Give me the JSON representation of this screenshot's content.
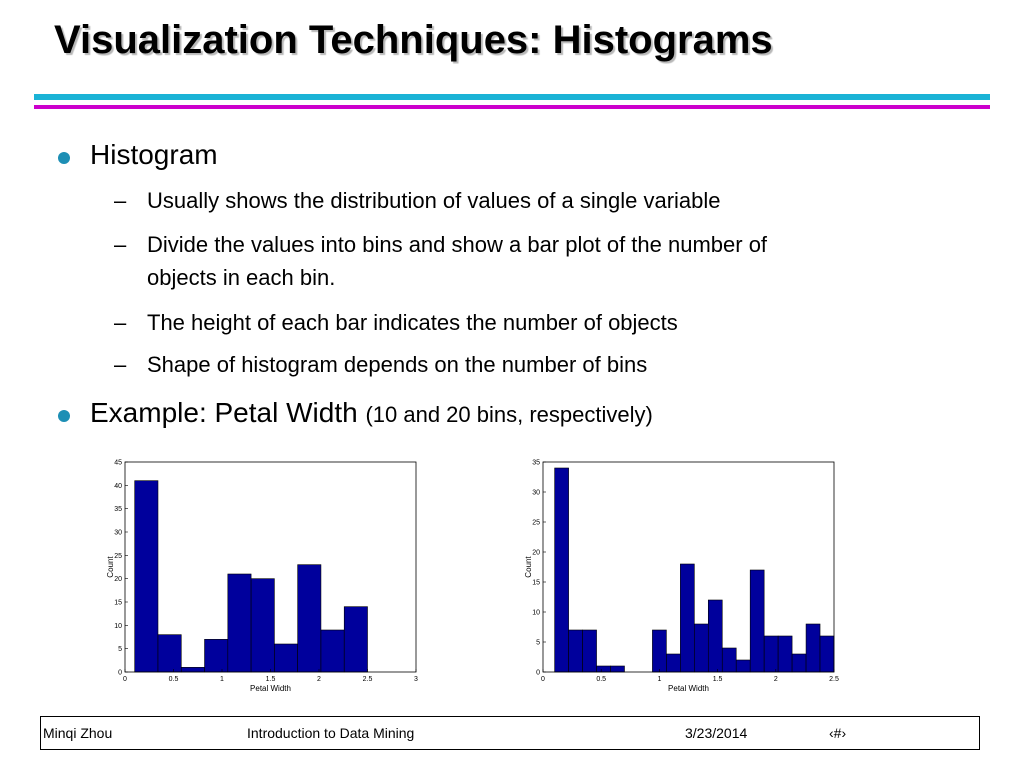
{
  "slide": {
    "title": "Visualization Techniques: Histograms",
    "bullets": [
      {
        "text": "Histogram",
        "subs": [
          "Usually shows the distribution of values of a single variable",
          "Divide the values into bins and show a bar plot of the number of",
          "objects in each bin.",
          "The height of each bar indicates the number of objects",
          "Shape of histogram depends on the number of bins"
        ]
      },
      {
        "text": "Example: Petal Width",
        "note": "(10 and 20 bins, respectively)"
      }
    ],
    "footer": {
      "author": "Minqi Zhou",
      "course": "Introduction to Data Mining",
      "date": "3/23/2014",
      "page": "‹#›"
    },
    "colors": {
      "bar": "#00009c",
      "bullet": "#1d8fb5",
      "rule_cyan": "#1ab3d6",
      "rule_magenta": "#cc00cc"
    }
  },
  "chart_data": [
    {
      "type": "bar",
      "bins": 10,
      "xlabel": "Petal Width",
      "ylabel": "Count",
      "xlim": [
        0,
        3
      ],
      "ylim": [
        0,
        45
      ],
      "xticks": [
        "0",
        "0.5",
        "1",
        "1.5",
        "2",
        "2.5",
        "3"
      ],
      "yticks": [
        "0",
        "5",
        "10",
        "15",
        "20",
        "25",
        "30",
        "35",
        "40",
        "45"
      ],
      "bin_edges": [
        0.1,
        0.34,
        0.58,
        0.82,
        1.06,
        1.3,
        1.54,
        1.78,
        2.02,
        2.26,
        2.5
      ],
      "values": [
        41,
        8,
        1,
        7,
        21,
        20,
        6,
        23,
        9,
        14
      ]
    },
    {
      "type": "bar",
      "bins": 20,
      "xlabel": "Petal Width",
      "ylabel": "Count",
      "xlim": [
        0,
        2.5
      ],
      "ylim": [
        0,
        35
      ],
      "xticks": [
        "0",
        "0.5",
        "1",
        "1.5",
        "2",
        "2.5"
      ],
      "yticks": [
        "0",
        "5",
        "10",
        "15",
        "20",
        "25",
        "30",
        "35"
      ],
      "bin_edges": [
        0.1,
        0.22,
        0.34,
        0.46,
        0.58,
        0.7,
        0.82,
        0.94,
        1.06,
        1.18,
        1.3,
        1.42,
        1.54,
        1.66,
        1.78,
        1.9,
        2.02,
        2.14,
        2.26,
        2.38,
        2.5
      ],
      "values": [
        34,
        7,
        7,
        1,
        1,
        0,
        0,
        7,
        3,
        18,
        8,
        12,
        4,
        2,
        17,
        6,
        6,
        3,
        8,
        6
      ]
    }
  ]
}
